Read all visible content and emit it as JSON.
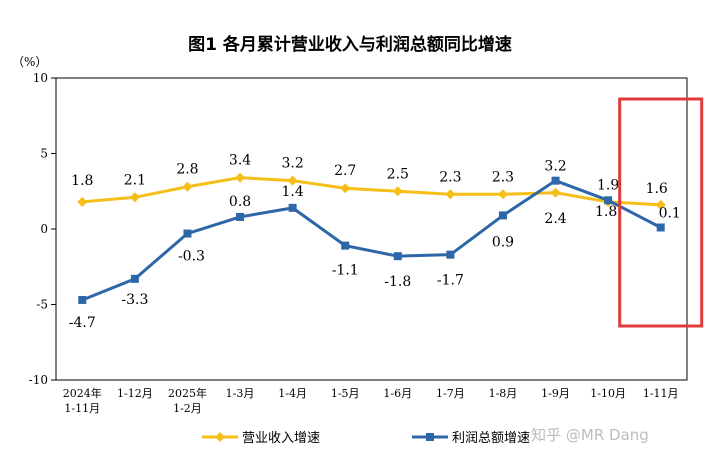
{
  "title": "图1  各月累计营业收入与利润总额同比增速",
  "watermark": "知乎 @MR Dang",
  "chart_data": {
    "type": "line",
    "ylabel": "（%）",
    "ylim": [
      -10,
      10
    ],
    "yticks": [
      10,
      5,
      0,
      -5,
      -10
    ],
    "categories": [
      [
        "2024年",
        "1-11月"
      ],
      [
        "1-12月"
      ],
      [
        "2025年",
        "1-2月"
      ],
      [
        "1-3月"
      ],
      [
        "1-4月"
      ],
      [
        "1-5月"
      ],
      [
        "1-6月"
      ],
      [
        "1-7月"
      ],
      [
        "1-8月"
      ],
      [
        "1-9月"
      ],
      [
        "1-10月"
      ],
      [
        "1-11月"
      ]
    ],
    "grid": false,
    "legend_position": "bottom",
    "series": [
      {
        "name": "营业收入增速",
        "color": "#F5BE18",
        "marker": "diamond",
        "values": [
          1.8,
          2.1,
          2.8,
          3.4,
          3.2,
          2.7,
          2.5,
          2.3,
          2.3,
          2.4,
          1.8,
          1.6
        ],
        "labels": [
          "1.8",
          "2.1",
          "2.8",
          "3.4",
          "3.2",
          "2.7",
          "2.5",
          "2.3",
          "2.3",
          "2.4",
          "1.8",
          "1.6"
        ]
      },
      {
        "name": "利润总额增速",
        "color": "#2E67A8",
        "marker": "square",
        "values": [
          -4.7,
          -3.3,
          -0.3,
          0.8,
          1.4,
          -1.1,
          -1.8,
          -1.7,
          0.9,
          3.2,
          1.9,
          0.1
        ],
        "labels": [
          "-4.7",
          "-3.3",
          "-0.3",
          "0.8",
          "1.4",
          "-1.1",
          "-1.8",
          "-1.7",
          "0.9",
          "3.2",
          "1.9",
          "0.1"
        ]
      }
    ],
    "highlight": {
      "category_index": 11,
      "color": "#E03A3A"
    }
  }
}
